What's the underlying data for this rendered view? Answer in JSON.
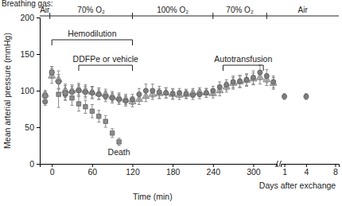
{
  "chart_data": [
    {
      "type": "scatter",
      "x_label": "Time (min)",
      "y_label": "Mean arterial pressure (mmHg)",
      "x": [
        -10,
        0,
        10,
        20,
        30,
        40,
        50,
        60,
        70,
        80,
        90,
        100,
        110,
        120,
        130,
        140,
        150,
        160,
        170,
        180,
        190,
        200,
        210,
        220,
        230,
        240,
        250,
        260,
        270,
        280,
        290,
        300,
        310,
        320,
        330
      ],
      "xlim": [
        -18,
        335
      ],
      "xticks": [
        0,
        60,
        120,
        180,
        240,
        300
      ],
      "ylim": [
        0,
        200
      ],
      "yticks": [
        0,
        50,
        100,
        150,
        200
      ],
      "series": [
        {
          "marker": "triangle",
          "color": "#b3b3b3",
          "values": [
            95,
            120,
            115,
            100,
            100,
            102,
            100,
            98,
            96,
            95,
            92,
            90,
            88,
            85,
            88,
            92,
            95,
            96,
            97,
            95,
            94,
            95,
            97,
            98,
            97,
            96,
            100,
            105,
            110,
            112,
            114,
            116,
            118,
            115,
            110
          ],
          "errors": [
            5,
            10,
            12,
            9,
            8,
            8,
            8,
            8,
            8,
            7,
            7,
            7,
            7,
            7,
            7,
            7,
            7,
            7,
            7,
            7,
            6,
            6,
            6,
            6,
            6,
            6,
            7,
            7,
            8,
            8,
            8,
            8,
            9,
            8,
            8
          ]
        },
        {
          "marker": "circle",
          "color": "#7f7f7f",
          "values": [
            85,
            125,
            112,
            95,
            98,
            100,
            98,
            97,
            95,
            92,
            90,
            88,
            86,
            88,
            95,
            100,
            100,
            98,
            97,
            96,
            97,
            96,
            94,
            95,
            97,
            100,
            105,
            108,
            112,
            113,
            115,
            118,
            125,
            120,
            112
          ],
          "errors": [
            5,
            8,
            10,
            8,
            8,
            8,
            8,
            8,
            7,
            7,
            7,
            7,
            7,
            7,
            8,
            9,
            9,
            8,
            7,
            7,
            6,
            6,
            6,
            6,
            6,
            6,
            7,
            7,
            8,
            8,
            8,
            9,
            10,
            9,
            8
          ]
        },
        {
          "marker": "square",
          "color": "#8c8c8c",
          "values": [
            93,
            125,
            95,
            97,
            90,
            82,
            78,
            72,
            65,
            58,
            42,
            30,
            null,
            null,
            null,
            null,
            null,
            null,
            null,
            null,
            null,
            null,
            null,
            null,
            null,
            null,
            null,
            null,
            null,
            null,
            null,
            null,
            null,
            null,
            null
          ],
          "errors": [
            5,
            8,
            18,
            10,
            10,
            10,
            9,
            9,
            8,
            8,
            6,
            5,
            null,
            null,
            null,
            null,
            null,
            null,
            null,
            null,
            null,
            null,
            null,
            null,
            null,
            null,
            null,
            null,
            null,
            null,
            null,
            null,
            null,
            null,
            null
          ]
        }
      ],
      "death_label": "Death",
      "breathing_gas": {
        "label": "Breathing gas:",
        "segments": [
          {
            "label": "Air",
            "start": -18,
            "end": -3
          },
          {
            "label": "70% O₂",
            "start": -3,
            "end": 120
          },
          {
            "label": "100% O₂",
            "start": 120,
            "end": 240
          },
          {
            "label": "70% O₂",
            "start": 240,
            "end": 320
          },
          {
            "label": "Air",
            "start": 320
          }
        ]
      },
      "brackets": [
        {
          "label": "Hemodilution",
          "start": 0,
          "end": 120
        },
        {
          "label": "DDFPe or vehicle",
          "start": 40,
          "end": 120
        },
        {
          "label": "Autotransfusion",
          "start": 255,
          "end": 315
        }
      ]
    },
    {
      "type": "scatter",
      "x_label": "Days after exchange",
      "x": [
        1,
        4
      ],
      "xlim": [
        0.5,
        8.5
      ],
      "xticks": [
        1,
        4,
        8
      ],
      "ylim": [
        0,
        200
      ],
      "tick_labels": "x",
      "series": [
        {
          "marker": "circle",
          "color": "#7f7f7f",
          "values": [
            92,
            92
          ],
          "errors": [
            4,
            4
          ]
        }
      ]
    }
  ]
}
